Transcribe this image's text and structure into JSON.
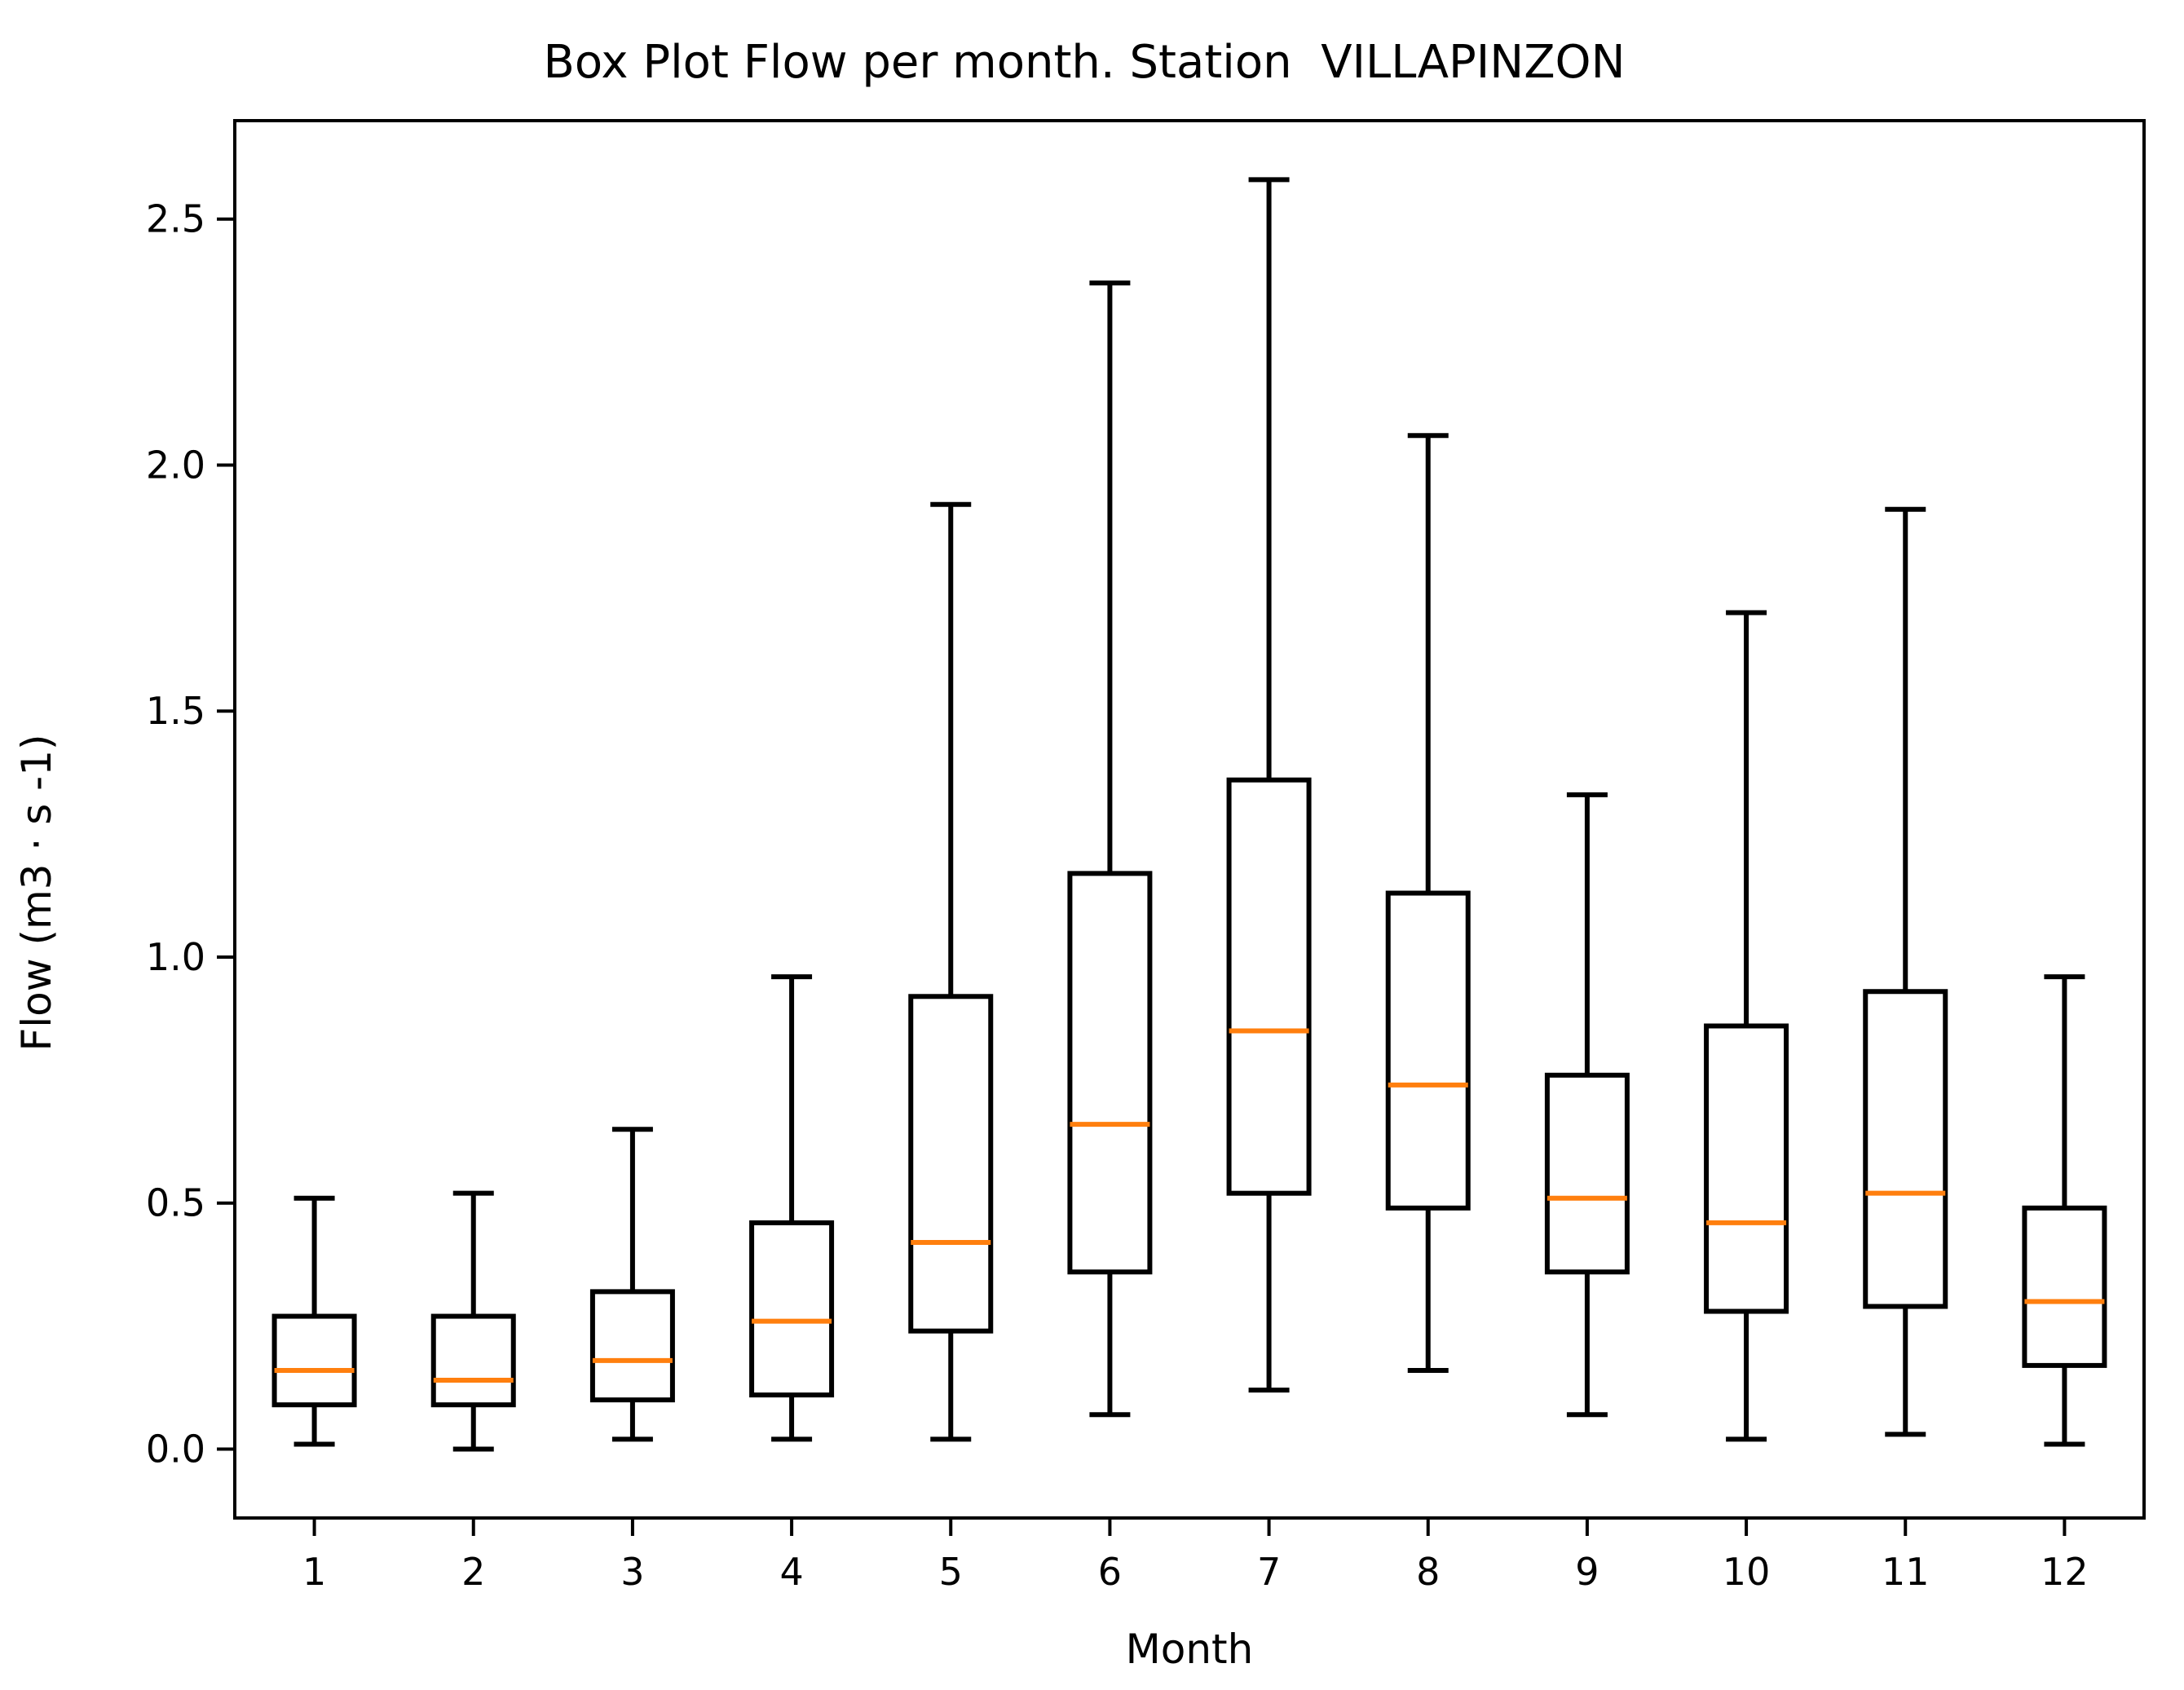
{
  "title": "Box Plot Flow per month. Station  VILLAPINZON",
  "chart_data": {
    "type": "boxplot",
    "title": "Box Plot Flow per month. Station  VILLAPINZON",
    "xlabel": "Month",
    "ylabel": "Flow (m3 · s -1)",
    "categories": [
      "1",
      "2",
      "3",
      "4",
      "5",
      "6",
      "7",
      "8",
      "9",
      "10",
      "11",
      "12"
    ],
    "y_ticks": [
      "0.0",
      "0.5",
      "1.0",
      "1.5",
      "2.0",
      "2.5"
    ],
    "y_tick_values": [
      0.0,
      0.5,
      1.0,
      1.5,
      2.0,
      2.5
    ],
    "ylim": [
      -0.14,
      2.7
    ],
    "grid": false,
    "legend": null,
    "series": [
      {
        "month": "1",
        "whisker_low": 0.01,
        "q1": 0.09,
        "median": 0.16,
        "q3": 0.27,
        "whisker_high": 0.51
      },
      {
        "month": "2",
        "whisker_low": 0.0,
        "q1": 0.09,
        "median": 0.14,
        "q3": 0.27,
        "whisker_high": 0.52
      },
      {
        "month": "3",
        "whisker_low": 0.02,
        "q1": 0.1,
        "median": 0.18,
        "q3": 0.32,
        "whisker_high": 0.65
      },
      {
        "month": "4",
        "whisker_low": 0.02,
        "q1": 0.11,
        "median": 0.26,
        "q3": 0.46,
        "whisker_high": 0.96
      },
      {
        "month": "5",
        "whisker_low": 0.02,
        "q1": 0.24,
        "median": 0.42,
        "q3": 0.92,
        "whisker_high": 1.92
      },
      {
        "month": "6",
        "whisker_low": 0.07,
        "q1": 0.36,
        "median": 0.66,
        "q3": 1.17,
        "whisker_high": 2.37
      },
      {
        "month": "7",
        "whisker_low": 0.12,
        "q1": 0.52,
        "median": 0.85,
        "q3": 1.36,
        "whisker_high": 2.58
      },
      {
        "month": "8",
        "whisker_low": 0.16,
        "q1": 0.49,
        "median": 0.74,
        "q3": 1.13,
        "whisker_high": 2.06
      },
      {
        "month": "9",
        "whisker_low": 0.07,
        "q1": 0.36,
        "median": 0.51,
        "q3": 0.76,
        "whisker_high": 1.33
      },
      {
        "month": "10",
        "whisker_low": 0.02,
        "q1": 0.28,
        "median": 0.46,
        "q3": 0.86,
        "whisker_high": 1.7
      },
      {
        "month": "11",
        "whisker_low": 0.03,
        "q1": 0.29,
        "median": 0.52,
        "q3": 0.93,
        "whisker_high": 1.91
      },
      {
        "month": "12",
        "whisker_low": 0.01,
        "q1": 0.17,
        "median": 0.3,
        "q3": 0.49,
        "whisker_high": 0.96
      }
    ],
    "colors": {
      "box_line": "#000000",
      "median_line": "#ff7f0e",
      "background": "#ffffff"
    }
  }
}
